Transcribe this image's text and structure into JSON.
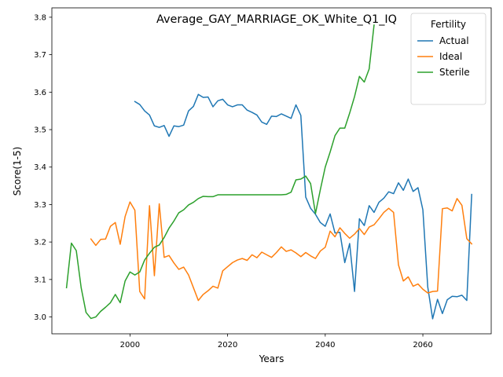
{
  "chart_data": {
    "type": "line",
    "title": "Average_GAY_MARRIAGE_OK_White_Q1_IQ",
    "xlabel": "Years",
    "ylabel": "Score(1-5)",
    "xlim": [
      1984,
      2074
    ],
    "ylim": [
      2.955,
      3.825
    ],
    "xticks": [
      2000,
      2020,
      2040,
      2060
    ],
    "yticks": [
      3.0,
      3.1,
      3.2,
      3.3,
      3.4,
      3.5,
      3.6,
      3.7,
      3.8
    ],
    "xtick_labels": [
      "2000",
      "2020",
      "2040",
      "2060"
    ],
    "ytick_labels": [
      "3.0",
      "3.1",
      "3.2",
      "3.3",
      "3.4",
      "3.5",
      "3.6",
      "3.7",
      "3.8"
    ],
    "grid": false,
    "legend": {
      "title": "Fertility",
      "position": "top-right"
    },
    "series": [
      {
        "name": "Actual",
        "color": "#1f77b4",
        "points": [
          [
            2001,
            3.575
          ],
          [
            2002,
            3.567
          ],
          [
            2003,
            3.55
          ],
          [
            2004,
            3.539
          ],
          [
            2005,
            3.51
          ],
          [
            2006,
            3.506
          ],
          [
            2007,
            3.511
          ],
          [
            2008,
            3.482
          ],
          [
            2009,
            3.51
          ],
          [
            2010,
            3.508
          ],
          [
            2011,
            3.512
          ],
          [
            2012,
            3.55
          ],
          [
            2013,
            3.562
          ],
          [
            2014,
            3.594
          ],
          [
            2015,
            3.586
          ],
          [
            2016,
            3.587
          ],
          [
            2017,
            3.561
          ],
          [
            2018,
            3.577
          ],
          [
            2019,
            3.581
          ],
          [
            2020,
            3.566
          ],
          [
            2021,
            3.561
          ],
          [
            2022,
            3.566
          ],
          [
            2023,
            3.566
          ],
          [
            2024,
            3.552
          ],
          [
            2025,
            3.546
          ],
          [
            2026,
            3.539
          ],
          [
            2027,
            3.52
          ],
          [
            2028,
            3.514
          ],
          [
            2029,
            3.536
          ],
          [
            2030,
            3.535
          ],
          [
            2031,
            3.542
          ],
          [
            2032,
            3.536
          ],
          [
            2033,
            3.53
          ],
          [
            2034,
            3.566
          ],
          [
            2035,
            3.538
          ],
          [
            2036,
            3.32
          ],
          [
            2037,
            3.29
          ],
          [
            2038,
            3.274
          ],
          [
            2039,
            3.252
          ],
          [
            2040,
            3.242
          ],
          [
            2041,
            3.275
          ],
          [
            2042,
            3.224
          ],
          [
            2043,
            3.226
          ],
          [
            2044,
            3.145
          ],
          [
            2045,
            3.196
          ],
          [
            2046,
            3.068
          ],
          [
            2047,
            3.262
          ],
          [
            2048,
            3.244
          ],
          [
            2049,
            3.297
          ],
          [
            2050,
            3.279
          ],
          [
            2051,
            3.306
          ],
          [
            2052,
            3.317
          ],
          [
            2053,
            3.334
          ],
          [
            2054,
            3.329
          ],
          [
            2055,
            3.358
          ],
          [
            2056,
            3.338
          ],
          [
            2057,
            3.368
          ],
          [
            2058,
            3.335
          ],
          [
            2059,
            3.345
          ],
          [
            2060,
            3.286
          ],
          [
            2061,
            3.08
          ],
          [
            2062,
            2.995
          ],
          [
            2063,
            3.047
          ],
          [
            2064,
            3.009
          ],
          [
            2065,
            3.046
          ],
          [
            2066,
            3.055
          ],
          [
            2067,
            3.054
          ],
          [
            2068,
            3.058
          ],
          [
            2069,
            3.044
          ],
          [
            2070,
            3.327
          ]
        ]
      },
      {
        "name": "Ideal",
        "color": "#ff7f0e",
        "points": [
          [
            1992,
            3.208
          ],
          [
            1993,
            3.191
          ],
          [
            1994,
            3.207
          ],
          [
            1995,
            3.208
          ],
          [
            1996,
            3.242
          ],
          [
            1997,
            3.252
          ],
          [
            1998,
            3.194
          ],
          [
            1999,
            3.268
          ],
          [
            2000,
            3.307
          ],
          [
            2001,
            3.285
          ],
          [
            2002,
            3.068
          ],
          [
            2003,
            3.048
          ],
          [
            2004,
            3.297
          ],
          [
            2005,
            3.11
          ],
          [
            2006,
            3.302
          ],
          [
            2007,
            3.159
          ],
          [
            2008,
            3.164
          ],
          [
            2009,
            3.144
          ],
          [
            2010,
            3.127
          ],
          [
            2011,
            3.133
          ],
          [
            2012,
            3.112
          ],
          [
            2013,
            3.078
          ],
          [
            2014,
            3.044
          ],
          [
            2015,
            3.06
          ],
          [
            2016,
            3.07
          ],
          [
            2017,
            3.082
          ],
          [
            2018,
            3.077
          ],
          [
            2019,
            3.123
          ],
          [
            2020,
            3.134
          ],
          [
            2021,
            3.145
          ],
          [
            2022,
            3.152
          ],
          [
            2023,
            3.156
          ],
          [
            2024,
            3.151
          ],
          [
            2025,
            3.166
          ],
          [
            2026,
            3.158
          ],
          [
            2027,
            3.173
          ],
          [
            2028,
            3.166
          ],
          [
            2029,
            3.159
          ],
          [
            2030,
            3.172
          ],
          [
            2031,
            3.187
          ],
          [
            2032,
            3.175
          ],
          [
            2033,
            3.179
          ],
          [
            2034,
            3.171
          ],
          [
            2035,
            3.161
          ],
          [
            2036,
            3.172
          ],
          [
            2037,
            3.163
          ],
          [
            2038,
            3.156
          ],
          [
            2039,
            3.176
          ],
          [
            2040,
            3.186
          ],
          [
            2041,
            3.229
          ],
          [
            2042,
            3.214
          ],
          [
            2043,
            3.238
          ],
          [
            2044,
            3.223
          ],
          [
            2045,
            3.21
          ],
          [
            2046,
            3.221
          ],
          [
            2047,
            3.236
          ],
          [
            2048,
            3.22
          ],
          [
            2049,
            3.24
          ],
          [
            2050,
            3.246
          ],
          [
            2051,
            3.262
          ],
          [
            2052,
            3.279
          ],
          [
            2053,
            3.29
          ],
          [
            2054,
            3.279
          ],
          [
            2055,
            3.139
          ],
          [
            2056,
            3.096
          ],
          [
            2057,
            3.107
          ],
          [
            2058,
            3.082
          ],
          [
            2059,
            3.088
          ],
          [
            2060,
            3.074
          ],
          [
            2061,
            3.064
          ],
          [
            2062,
            3.068
          ],
          [
            2063,
            3.069
          ],
          [
            2064,
            3.289
          ],
          [
            2065,
            3.291
          ],
          [
            2066,
            3.283
          ],
          [
            2067,
            3.316
          ],
          [
            2068,
            3.298
          ],
          [
            2069,
            3.209
          ],
          [
            2070,
            3.195
          ]
        ]
      },
      {
        "name": "Sterile",
        "color": "#2ca02c",
        "points": [
          [
            1987,
            3.078
          ],
          [
            1988,
            3.197
          ],
          [
            1989,
            3.177
          ],
          [
            1990,
            3.078
          ],
          [
            1991,
            3.012
          ],
          [
            1992,
            2.996
          ],
          [
            1993,
            3.0
          ],
          [
            1994,
            3.015
          ],
          [
            1995,
            3.026
          ],
          [
            1996,
            3.038
          ],
          [
            1997,
            3.06
          ],
          [
            1998,
            3.038
          ],
          [
            1999,
            3.096
          ],
          [
            2000,
            3.12
          ],
          [
            2001,
            3.112
          ],
          [
            2002,
            3.12
          ],
          [
            2003,
            3.152
          ],
          [
            2004,
            3.17
          ],
          [
            2005,
            3.186
          ],
          [
            2006,
            3.192
          ],
          [
            2007,
            3.212
          ],
          [
            2008,
            3.237
          ],
          [
            2009,
            3.256
          ],
          [
            2010,
            3.278
          ],
          [
            2011,
            3.286
          ],
          [
            2012,
            3.299
          ],
          [
            2013,
            3.306
          ],
          [
            2014,
            3.316
          ],
          [
            2015,
            3.322
          ],
          [
            2016,
            3.321
          ],
          [
            2017,
            3.321
          ],
          [
            2018,
            3.326
          ],
          [
            2019,
            3.326
          ],
          [
            2020,
            3.326
          ],
          [
            2021,
            3.326
          ],
          [
            2022,
            3.326
          ],
          [
            2023,
            3.326
          ],
          [
            2024,
            3.326
          ],
          [
            2025,
            3.326
          ],
          [
            2026,
            3.326
          ],
          [
            2027,
            3.326
          ],
          [
            2028,
            3.326
          ],
          [
            2029,
            3.326
          ],
          [
            2030,
            3.326
          ],
          [
            2031,
            3.326
          ],
          [
            2032,
            3.327
          ],
          [
            2033,
            3.333
          ],
          [
            2034,
            3.366
          ],
          [
            2035,
            3.368
          ],
          [
            2036,
            3.376
          ],
          [
            2037,
            3.356
          ],
          [
            2038,
            3.276
          ],
          [
            2039,
            3.34
          ],
          [
            2040,
            3.4
          ],
          [
            2041,
            3.44
          ],
          [
            2042,
            3.484
          ],
          [
            2043,
            3.504
          ],
          [
            2044,
            3.504
          ],
          [
            2045,
            3.544
          ],
          [
            2046,
            3.588
          ],
          [
            2047,
            3.642
          ],
          [
            2048,
            3.627
          ],
          [
            2049,
            3.662
          ],
          [
            2050,
            3.779
          ]
        ]
      }
    ]
  }
}
